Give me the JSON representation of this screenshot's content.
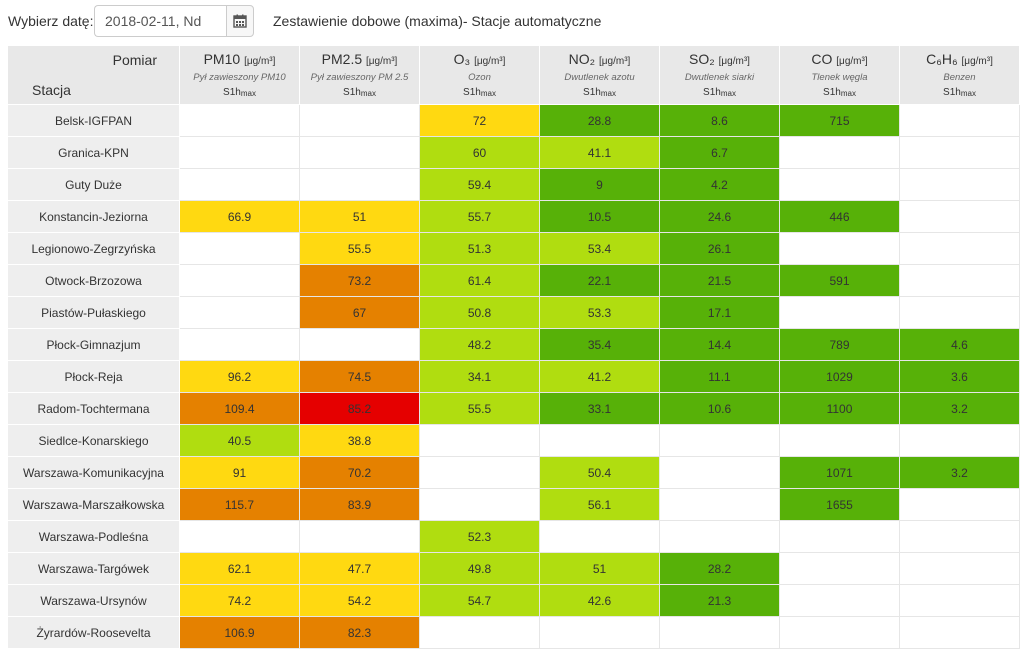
{
  "toolbar": {
    "date_label": "Wybierz datę:",
    "date_value": "2018-02-11, Nd",
    "calendar_icon": "calendar-icon",
    "report_title": "Zestawienie dobowe (maxima)- Stacje automatyczne"
  },
  "header": {
    "row_label": "Pomiar",
    "col_label": "Stacja",
    "unit": "[μg/m³]",
    "aggregate": "S1h",
    "aggregate_sub": "max",
    "pollutants": [
      {
        "name": "PM10",
        "desc": "Pył zawieszony PM10"
      },
      {
        "name": "PM2.5",
        "desc": "Pył zawieszony PM 2.5"
      },
      {
        "name": "O₃",
        "desc": "Ozon"
      },
      {
        "name": "NO₂",
        "desc": "Dwutlenek azotu"
      },
      {
        "name": "SO₂",
        "desc": "Dwutlenek siarki"
      },
      {
        "name": "CO",
        "desc": "Tlenek węgla"
      },
      {
        "name": "C₆H₆",
        "desc": "Benzen"
      }
    ]
  },
  "legend_colors": {
    "very_good": "#57b108",
    "good": "#b0dd10",
    "moderate": "#ffd911",
    "sufficient": "#e58100",
    "bad": "#e50000",
    "none": "#ffffff"
  },
  "rows": [
    {
      "station": "Belsk-IGFPAN",
      "cells": [
        {
          "v": "",
          "c": "none"
        },
        {
          "v": "",
          "c": "none"
        },
        {
          "v": "72",
          "c": "moderate"
        },
        {
          "v": "28.8",
          "c": "very_good"
        },
        {
          "v": "8.6",
          "c": "very_good"
        },
        {
          "v": "715",
          "c": "very_good"
        },
        {
          "v": "",
          "c": "none"
        }
      ]
    },
    {
      "station": "Granica-KPN",
      "cells": [
        {
          "v": "",
          "c": "none"
        },
        {
          "v": "",
          "c": "none"
        },
        {
          "v": "60",
          "c": "good"
        },
        {
          "v": "41.1",
          "c": "good"
        },
        {
          "v": "6.7",
          "c": "very_good"
        },
        {
          "v": "",
          "c": "none"
        },
        {
          "v": "",
          "c": "none"
        }
      ]
    },
    {
      "station": "Guty Duże",
      "cells": [
        {
          "v": "",
          "c": "none"
        },
        {
          "v": "",
          "c": "none"
        },
        {
          "v": "59.4",
          "c": "good"
        },
        {
          "v": "9",
          "c": "very_good"
        },
        {
          "v": "4.2",
          "c": "very_good"
        },
        {
          "v": "",
          "c": "none"
        },
        {
          "v": "",
          "c": "none"
        }
      ]
    },
    {
      "station": "Konstancin-Jeziorna",
      "cells": [
        {
          "v": "66.9",
          "c": "moderate"
        },
        {
          "v": "51",
          "c": "moderate"
        },
        {
          "v": "55.7",
          "c": "good"
        },
        {
          "v": "10.5",
          "c": "very_good"
        },
        {
          "v": "24.6",
          "c": "very_good"
        },
        {
          "v": "446",
          "c": "very_good"
        },
        {
          "v": "",
          "c": "none"
        }
      ]
    },
    {
      "station": "Legionowo-Zegrzyńska",
      "cells": [
        {
          "v": "",
          "c": "none"
        },
        {
          "v": "55.5",
          "c": "moderate"
        },
        {
          "v": "51.3",
          "c": "good"
        },
        {
          "v": "53.4",
          "c": "good"
        },
        {
          "v": "26.1",
          "c": "very_good"
        },
        {
          "v": "",
          "c": "none"
        },
        {
          "v": "",
          "c": "none"
        }
      ]
    },
    {
      "station": "Otwock-Brzozowa",
      "cells": [
        {
          "v": "",
          "c": "none"
        },
        {
          "v": "73.2",
          "c": "sufficient"
        },
        {
          "v": "61.4",
          "c": "good"
        },
        {
          "v": "22.1",
          "c": "very_good"
        },
        {
          "v": "21.5",
          "c": "very_good"
        },
        {
          "v": "591",
          "c": "very_good"
        },
        {
          "v": "",
          "c": "none"
        }
      ]
    },
    {
      "station": "Piastów-Pułaskiego",
      "cells": [
        {
          "v": "",
          "c": "none"
        },
        {
          "v": "67",
          "c": "sufficient"
        },
        {
          "v": "50.8",
          "c": "good"
        },
        {
          "v": "53.3",
          "c": "good"
        },
        {
          "v": "17.1",
          "c": "very_good"
        },
        {
          "v": "",
          "c": "none"
        },
        {
          "v": "",
          "c": "none"
        }
      ]
    },
    {
      "station": "Płock-Gimnazjum",
      "cells": [
        {
          "v": "",
          "c": "none"
        },
        {
          "v": "",
          "c": "none"
        },
        {
          "v": "48.2",
          "c": "good"
        },
        {
          "v": "35.4",
          "c": "very_good"
        },
        {
          "v": "14.4",
          "c": "very_good"
        },
        {
          "v": "789",
          "c": "very_good"
        },
        {
          "v": "4.6",
          "c": "very_good"
        }
      ]
    },
    {
      "station": "Płock-Reja",
      "cells": [
        {
          "v": "96.2",
          "c": "moderate"
        },
        {
          "v": "74.5",
          "c": "sufficient"
        },
        {
          "v": "34.1",
          "c": "good"
        },
        {
          "v": "41.2",
          "c": "good"
        },
        {
          "v": "11.1",
          "c": "very_good"
        },
        {
          "v": "1029",
          "c": "very_good"
        },
        {
          "v": "3.6",
          "c": "very_good"
        }
      ]
    },
    {
      "station": "Radom-Tochtermana",
      "cells": [
        {
          "v": "109.4",
          "c": "sufficient"
        },
        {
          "v": "85.2",
          "c": "bad"
        },
        {
          "v": "55.5",
          "c": "good"
        },
        {
          "v": "33.1",
          "c": "very_good"
        },
        {
          "v": "10.6",
          "c": "very_good"
        },
        {
          "v": "1100",
          "c": "very_good"
        },
        {
          "v": "3.2",
          "c": "very_good"
        }
      ]
    },
    {
      "station": "Siedlce-Konarskiego",
      "cells": [
        {
          "v": "40.5",
          "c": "good"
        },
        {
          "v": "38.8",
          "c": "moderate"
        },
        {
          "v": "",
          "c": "none"
        },
        {
          "v": "",
          "c": "none"
        },
        {
          "v": "",
          "c": "none"
        },
        {
          "v": "",
          "c": "none"
        },
        {
          "v": "",
          "c": "none"
        }
      ]
    },
    {
      "station": "Warszawa-Komunikacyjna",
      "cells": [
        {
          "v": "91",
          "c": "moderate"
        },
        {
          "v": "70.2",
          "c": "sufficient"
        },
        {
          "v": "",
          "c": "none"
        },
        {
          "v": "50.4",
          "c": "good"
        },
        {
          "v": "",
          "c": "none"
        },
        {
          "v": "1071",
          "c": "very_good"
        },
        {
          "v": "3.2",
          "c": "very_good"
        }
      ]
    },
    {
      "station": "Warszawa-Marszałkowska",
      "cells": [
        {
          "v": "115.7",
          "c": "sufficient"
        },
        {
          "v": "83.9",
          "c": "sufficient"
        },
        {
          "v": "",
          "c": "none"
        },
        {
          "v": "56.1",
          "c": "good"
        },
        {
          "v": "",
          "c": "none"
        },
        {
          "v": "1655",
          "c": "very_good"
        },
        {
          "v": "",
          "c": "none"
        }
      ]
    },
    {
      "station": "Warszawa-Podleśna",
      "cells": [
        {
          "v": "",
          "c": "none"
        },
        {
          "v": "",
          "c": "none"
        },
        {
          "v": "52.3",
          "c": "good"
        },
        {
          "v": "",
          "c": "none"
        },
        {
          "v": "",
          "c": "none"
        },
        {
          "v": "",
          "c": "none"
        },
        {
          "v": "",
          "c": "none"
        }
      ]
    },
    {
      "station": "Warszawa-Targówek",
      "cells": [
        {
          "v": "62.1",
          "c": "moderate"
        },
        {
          "v": "47.7",
          "c": "moderate"
        },
        {
          "v": "49.8",
          "c": "good"
        },
        {
          "v": "51",
          "c": "good"
        },
        {
          "v": "28.2",
          "c": "very_good"
        },
        {
          "v": "",
          "c": "none"
        },
        {
          "v": "",
          "c": "none"
        }
      ]
    },
    {
      "station": "Warszawa-Ursynów",
      "cells": [
        {
          "v": "74.2",
          "c": "moderate"
        },
        {
          "v": "54.2",
          "c": "moderate"
        },
        {
          "v": "54.7",
          "c": "good"
        },
        {
          "v": "42.6",
          "c": "good"
        },
        {
          "v": "21.3",
          "c": "very_good"
        },
        {
          "v": "",
          "c": "none"
        },
        {
          "v": "",
          "c": "none"
        }
      ]
    },
    {
      "station": "Żyrardów-Roosevelta",
      "cells": [
        {
          "v": "106.9",
          "c": "sufficient"
        },
        {
          "v": "82.3",
          "c": "sufficient"
        },
        {
          "v": "",
          "c": "none"
        },
        {
          "v": "",
          "c": "none"
        },
        {
          "v": "",
          "c": "none"
        },
        {
          "v": "",
          "c": "none"
        },
        {
          "v": "",
          "c": "none"
        }
      ]
    }
  ]
}
